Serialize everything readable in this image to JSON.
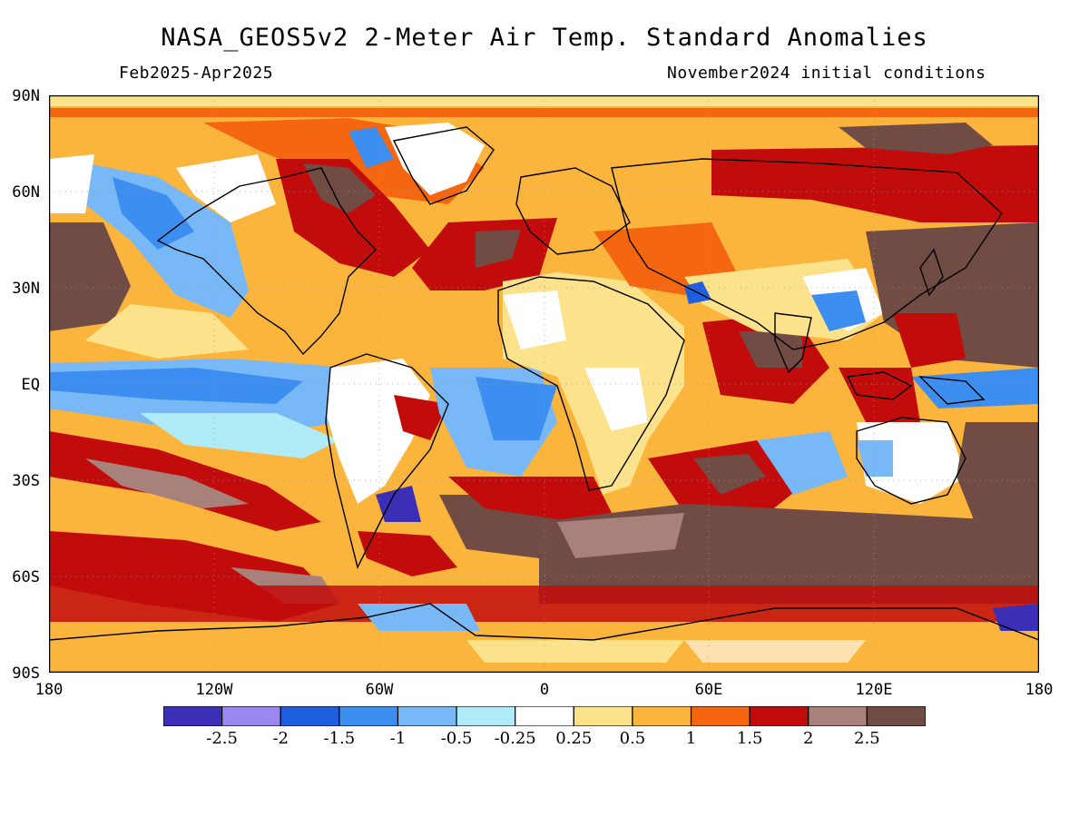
{
  "title": "NASA_GEOS5v2 2-Meter Air Temp. Standard Anomalies",
  "subtitle_left": "Feb2025-Apr2025",
  "subtitle_right": "November2024 initial conditions",
  "lat_labels": [
    "90N",
    "60N",
    "30N",
    "EQ",
    "30S",
    "60S",
    "90S"
  ],
  "lon_labels": [
    "180",
    "120W",
    "60W",
    "0",
    "60E",
    "120E",
    "180"
  ],
  "colorbar": {
    "colors": [
      "#3b2fb8",
      "#9b87f0",
      "#1e5fe0",
      "#3c8ef0",
      "#78b8f6",
      "#b0ecf8",
      "#ffffff",
      "#fde28c",
      "#fbb43c",
      "#f4660f",
      "#c20c0c",
      "#a8817a",
      "#704c44"
    ],
    "labels": [
      "-2.5",
      "-2",
      "-1.5",
      "-1",
      "-0.5",
      "-0.25",
      "0.25",
      "0.5",
      "1",
      "1.5",
      "2",
      "2.5"
    ]
  },
  "map": {
    "extent_lon": [
      -180,
      180
    ],
    "extent_lat": [
      -90,
      90
    ],
    "background_color": "#fbb43c"
  }
}
